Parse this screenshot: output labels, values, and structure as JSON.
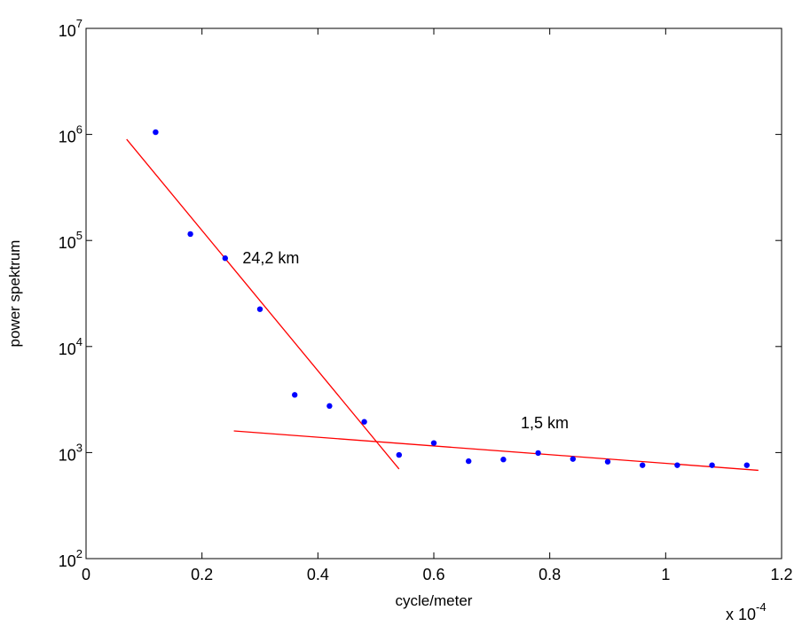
{
  "chart_data": {
    "type": "scatter",
    "title": "",
    "xlabel": "cycle/meter",
    "ylabel": "power spektrum",
    "x_exponent_label": {
      "base": "x 10",
      "exp": "-4"
    },
    "xlim": [
      0,
      1.2
    ],
    "ylim": [
      100,
      10000000
    ],
    "yscale": "log",
    "grid": false,
    "x_ticks": [
      "0",
      "0.2",
      "0.4",
      "0.6",
      "0.8",
      "1",
      "1.2"
    ],
    "x_tick_values": [
      0,
      0.2,
      0.4,
      0.6,
      0.8,
      1.0,
      1.2
    ],
    "y_ticks": [
      {
        "base": "10",
        "exp": "2",
        "value": 100
      },
      {
        "base": "10",
        "exp": "3",
        "value": 1000
      },
      {
        "base": "10",
        "exp": "4",
        "value": 10000
      },
      {
        "base": "10",
        "exp": "5",
        "value": 100000
      },
      {
        "base": "10",
        "exp": "6",
        "value": 1000000
      },
      {
        "base": "10",
        "exp": "7",
        "value": 10000000
      }
    ],
    "series": [
      {
        "kind": "points",
        "color": "#0000ff",
        "x": [
          0.12,
          0.18,
          0.24,
          0.3,
          0.36,
          0.42,
          0.48,
          0.54,
          0.6,
          0.66,
          0.72,
          0.78,
          0.84,
          0.9,
          0.96,
          1.02,
          1.08,
          1.14
        ],
        "y": [
          1050000,
          115000,
          68000,
          22500,
          3500,
          2750,
          1950,
          950,
          1230,
          830,
          860,
          990,
          870,
          820,
          760,
          760,
          760,
          760
        ]
      },
      {
        "kind": "line",
        "color": "#ff0000",
        "x": [
          0.07,
          0.54
        ],
        "y": [
          900000,
          700
        ]
      },
      {
        "kind": "line",
        "color": "#ff0000",
        "x": [
          0.255,
          1.16
        ],
        "y": [
          1600,
          680
        ]
      }
    ],
    "annotations": [
      {
        "text": "24,2 km",
        "x": 0.27,
        "y": 68000
      },
      {
        "text": "1,5 km",
        "x": 0.75,
        "y": 1900
      }
    ]
  }
}
